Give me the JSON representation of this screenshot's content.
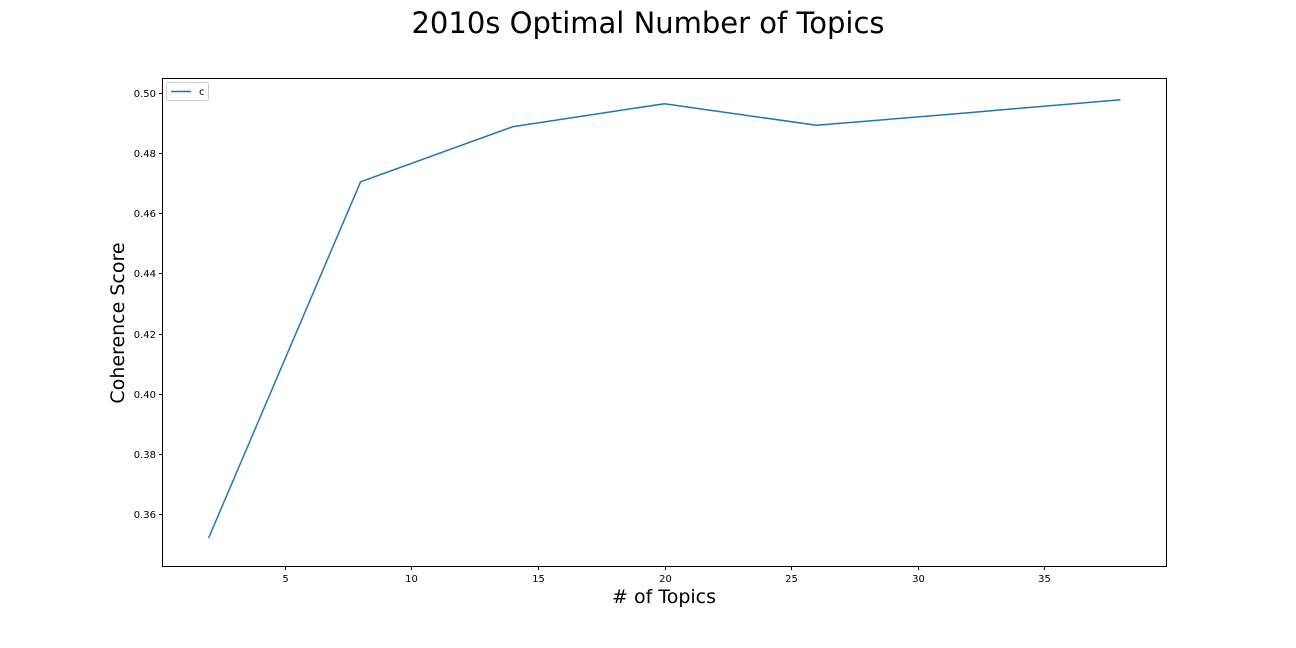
{
  "chart_data": {
    "type": "line",
    "title": "2010s Optimal Number of Topics",
    "xlabel": "# of Topics",
    "ylabel": "Coherence Score",
    "x": [
      2,
      8,
      14,
      20,
      26,
      32,
      38
    ],
    "series": [
      {
        "name": "c",
        "color": "#1f77b4",
        "values": [
          0.352,
          0.4705,
          0.4888,
          0.4965,
          0.4893,
          0.4935,
          0.4978
        ]
      }
    ],
    "xlim": [
      0.2,
      39.8
    ],
    "ylim": [
      0.3427,
      0.5047
    ],
    "xticks": [
      5,
      10,
      15,
      20,
      25,
      30,
      35
    ],
    "xtick_labels": [
      "5",
      "10",
      "15",
      "20",
      "25",
      "30",
      "35"
    ],
    "yticks": [
      0.36,
      0.38,
      0.4,
      0.42,
      0.44,
      0.46,
      0.48,
      0.5
    ],
    "ytick_labels": [
      "0.36",
      "0.38",
      "0.40",
      "0.42",
      "0.44",
      "0.46",
      "0.48",
      "0.50"
    ],
    "grid": false,
    "legend": "upper-left"
  }
}
